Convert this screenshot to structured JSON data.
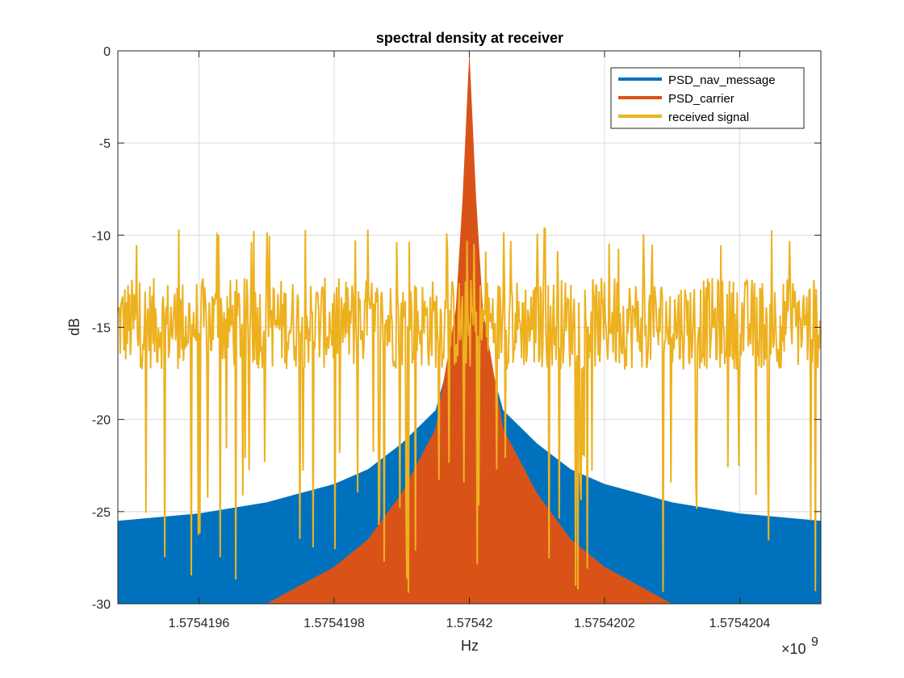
{
  "chart_data": {
    "type": "area",
    "title": "spectral density at receiver",
    "xlabel": "Hz",
    "ylabel": "dB",
    "x_exponent_label": "×10",
    "x_exponent_power": "9",
    "xlim": [
      1.57541948,
      1.57542052
    ],
    "ylim": [
      -30,
      0
    ],
    "grid": true,
    "legend_position": "top-right",
    "x_ticks": [
      {
        "value": 1.5754196,
        "label": "1.5754196"
      },
      {
        "value": 1.5754198,
        "label": "1.5754198"
      },
      {
        "value": 1.57542,
        "label": "1.57542"
      },
      {
        "value": 1.5754202,
        "label": "1.5754202"
      },
      {
        "value": 1.5754204,
        "label": "1.5754204"
      }
    ],
    "y_ticks": [
      {
        "value": 0,
        "label": "0"
      },
      {
        "value": -5,
        "label": "-5"
      },
      {
        "value": -10,
        "label": "-10"
      },
      {
        "value": -15,
        "label": "-15"
      },
      {
        "value": -20,
        "label": "-20"
      },
      {
        "value": -25,
        "label": "-25"
      },
      {
        "value": -30,
        "label": "-30"
      }
    ],
    "series": [
      {
        "name": "PSD_nav_message",
        "color": "#0072BD",
        "values_description": "sinc^2 envelope in dB, peak near -7 dB at center",
        "x": [
          1.57541948,
          1.5754196,
          1.5754197,
          1.5754198,
          1.57541985,
          1.5754199,
          1.57541995,
          1.57541998,
          1.57541999,
          1.57542,
          1.57542001,
          1.57542002,
          1.57542005,
          1.5754201,
          1.57542015,
          1.5754202,
          1.5754203,
          1.5754204,
          1.57542052
        ],
        "values": [
          -25.5,
          -25.1,
          -24.5,
          -23.5,
          -22.7,
          -21.3,
          -19.5,
          -15.5,
          -11.0,
          -7.0,
          -11.0,
          -15.5,
          -19.5,
          -21.3,
          -22.7,
          -23.5,
          -24.5,
          -25.1,
          -25.5
        ]
      },
      {
        "name": "PSD_carrier",
        "color": "#D95319",
        "values_description": "narrow carrier spike reaching 0 dB at center",
        "x": [
          1.5754197,
          1.5754198,
          1.57541985,
          1.5754199,
          1.57541995,
          1.57541998,
          1.57541999,
          1.57542,
          1.57542001,
          1.57542002,
          1.57542005,
          1.5754201,
          1.57542015,
          1.5754202,
          1.5754203
        ],
        "values": [
          -30.0,
          -28.0,
          -26.5,
          -24.0,
          -20.5,
          -14.0,
          -8.0,
          0.0,
          -8.0,
          -14.0,
          -20.5,
          -24.0,
          -26.5,
          -28.0,
          -30.0
        ]
      },
      {
        "name": "received signal",
        "color": "#EDB120",
        "values_description": "noisy received signal fluctuating around -15 dB",
        "mean": -14.8,
        "range": [
          -29.5,
          -9.5
        ]
      }
    ]
  }
}
